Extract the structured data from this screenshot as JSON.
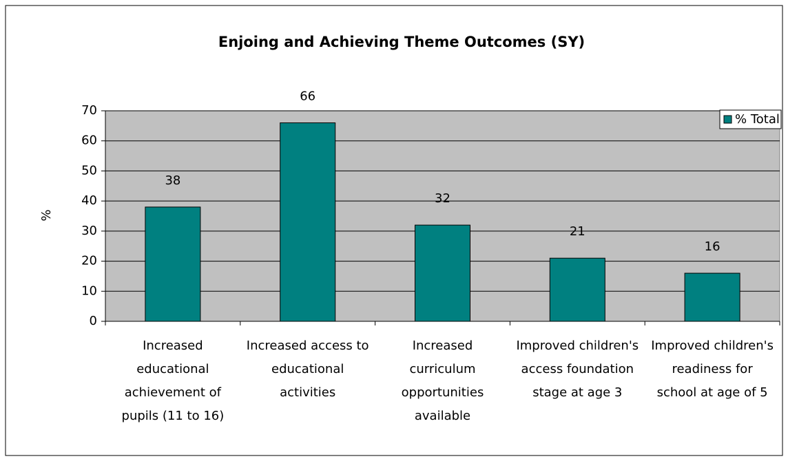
{
  "chart_data": {
    "type": "bar",
    "title": "Enjoing and Achieving Theme Outcomes (SY)",
    "y_label": "%",
    "categories": [
      "Increased educational achievement of pupils (11 to 16)",
      "Increased access to educational activities",
      "Increased curriculum opportunities available",
      "Improved children's access foundation stage at age 3",
      "Improved children's readiness for school at age of 5"
    ],
    "series": [
      {
        "name": "% Total",
        "color": "#008080",
        "values": [
          38,
          66,
          32,
          21,
          16
        ]
      }
    ],
    "ylim": [
      0,
      70
    ],
    "yticks": [
      0,
      10,
      20,
      30,
      40,
      50,
      60,
      70
    ],
    "grid": true,
    "legend": "top-right",
    "plot_background": "#c0c0c0"
  }
}
